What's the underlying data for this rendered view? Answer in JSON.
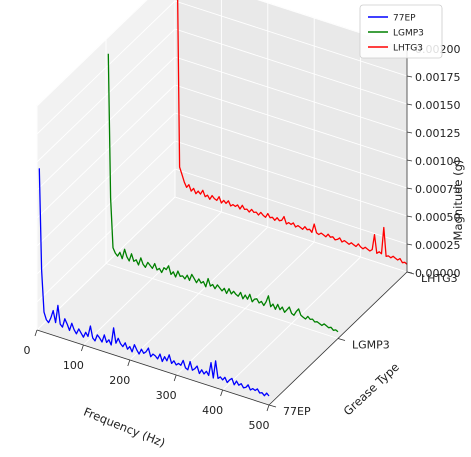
{
  "chart_data": {
    "type": "line",
    "projection": "3d",
    "xlabel": "Frequency (Hz)",
    "ylabel": "Grease Type",
    "zlabel": "Magnitude (g)",
    "xlim": [
      0,
      500
    ],
    "zlim": [
      0,
      0.002
    ],
    "x_ticks": [
      "0",
      "100",
      "200",
      "300",
      "400",
      "500"
    ],
    "y_ticks": [
      "77EP",
      "LGMP3",
      "LHTG3"
    ],
    "z_ticks": [
      "0.00000",
      "0.00025",
      "0.00050",
      "0.00075",
      "0.00100",
      "0.00125",
      "0.00150",
      "0.00175",
      "0.00200"
    ],
    "grid": true,
    "legend_position": "top-right",
    "series": [
      {
        "name": "77EP",
        "color": "#0000ff",
        "x": [
          5,
          10,
          15,
          20,
          25,
          30,
          35,
          40,
          45,
          50,
          55,
          60,
          65,
          70,
          75,
          80,
          85,
          90,
          95,
          100,
          105,
          110,
          115,
          120,
          125,
          130,
          135,
          140,
          145,
          150,
          155,
          160,
          165,
          170,
          175,
          180,
          185,
          190,
          195,
          200,
          205,
          210,
          215,
          220,
          225,
          230,
          235,
          240,
          245,
          250,
          255,
          260,
          265,
          270,
          275,
          280,
          285,
          290,
          295,
          300,
          305,
          310,
          315,
          320,
          325,
          330,
          335,
          340,
          345,
          350,
          355,
          360,
          365,
          370,
          375,
          380,
          385,
          390,
          395,
          400,
          405,
          410,
          415,
          420,
          425,
          430,
          435,
          440,
          445,
          450,
          455,
          460,
          465,
          470,
          475,
          480,
          485,
          490,
          495,
          500
        ],
        "values": [
          0.00145,
          0.00055,
          0.00018,
          0.00012,
          0.0001,
          0.00015,
          0.00022,
          0.00012,
          0.00028,
          0.00012,
          0.0001,
          0.00018,
          0.00014,
          9e-05,
          0.00016,
          0.00011,
          8e-05,
          0.00013,
          0.0001,
          7e-05,
          0.00012,
          9e-05,
          0.00019,
          9e-05,
          7e-05,
          0.00013,
          0.00011,
          8e-05,
          0.00015,
          9e-05,
          0.00012,
          8e-05,
          0.00024,
          0.00011,
          0.00016,
          0.00012,
          0.0001,
          0.00014,
          9e-05,
          0.00012,
          8e-05,
          0.00015,
          0.00011,
          8e-05,
          0.00013,
          0.0001,
          0.00012,
          0.00016,
          9e-05,
          0.00012,
          0.00011,
          9e-05,
          0.00014,
          8e-05,
          0.00013,
          0.0001,
          0.00016,
          9e-05,
          0.00012,
          9e-05,
          0.00011,
          0.0001,
          0.00015,
          9e-05,
          8e-05,
          0.00016,
          9e-05,
          0.00011,
          0.00014,
          8e-05,
          0.00012,
          9e-05,
          0.00012,
          9e-05,
          0.00021,
          8e-05,
          0.00024,
          9e-05,
          0.00011,
          9e-05,
          0.00012,
          8e-05,
          0.00011,
          0.00013,
          8e-05,
          0.00012,
          9e-05,
          0.00011,
          8e-05,
          9e-05,
          0.00012,
          8e-05,
          0.0001,
          9e-05,
          0.00011,
          8e-05,
          9e-05,
          7e-05,
          0.0001,
          8e-05
        ]
      },
      {
        "name": "LGMP3",
        "color": "#008000",
        "x": [
          5,
          10,
          15,
          20,
          25,
          30,
          35,
          40,
          45,
          50,
          55,
          60,
          65,
          70,
          75,
          80,
          85,
          90,
          95,
          100,
          105,
          110,
          115,
          120,
          125,
          130,
          135,
          140,
          145,
          150,
          155,
          160,
          165,
          170,
          175,
          180,
          185,
          190,
          195,
          200,
          205,
          210,
          215,
          220,
          225,
          230,
          235,
          240,
          245,
          250,
          255,
          260,
          265,
          270,
          275,
          280,
          285,
          290,
          295,
          300,
          305,
          310,
          315,
          320,
          325,
          330,
          335,
          340,
          345,
          350,
          355,
          360,
          365,
          370,
          375,
          380,
          385,
          390,
          395,
          400,
          405,
          410,
          415,
          420,
          425,
          430,
          435,
          440,
          445,
          450,
          455,
          460,
          465,
          470,
          475,
          480,
          485,
          490,
          495,
          500
        ],
        "values": [
          0.00188,
          0.0006,
          0.00016,
          0.00012,
          0.0001,
          0.00014,
          9e-05,
          0.00018,
          0.00012,
          9e-05,
          0.00016,
          0.0001,
          0.00012,
          8e-05,
          0.00015,
          0.0001,
          8e-05,
          0.00013,
          0.00011,
          9e-05,
          0.00014,
          9e-05,
          0.00011,
          8e-05,
          0.00013,
          0.00012,
          0.00016,
          9e-05,
          0.00012,
          8e-05,
          0.00014,
          0.0001,
          0.00011,
          9e-05,
          0.00013,
          9e-05,
          0.00015,
          0.00012,
          9e-05,
          0.00013,
          0.0001,
          0.00012,
          8e-05,
          0.00016,
          0.0001,
          0.00012,
          9e-05,
          0.00013,
          0.00011,
          9e-05,
          0.00012,
          8e-05,
          0.00013,
          9e-05,
          0.00012,
          0.0001,
          9e-05,
          0.00013,
          8e-05,
          0.00012,
          9e-05,
          0.00014,
          8e-05,
          0.00011,
          0.00012,
          9e-05,
          0.00011,
          8e-05,
          0.00012,
          0.00018,
          9e-05,
          0.00012,
          8e-05,
          0.00013,
          9e-05,
          0.00012,
          8e-05,
          0.00011,
          0.00014,
          9e-05,
          8e-05,
          0.00012,
          0.00015,
          0.0001,
          9e-05,
          8e-05,
          0.00011,
          9e-05,
          0.0001,
          8e-05,
          9e-05,
          8e-05,
          7e-05,
          9e-05,
          8e-05,
          7e-05,
          8e-05,
          6e-05,
          7e-05,
          6e-05
        ]
      },
      {
        "name": "LHTG3",
        "color": "#ff0000",
        "x": [
          5,
          10,
          15,
          20,
          25,
          30,
          35,
          40,
          45,
          50,
          55,
          60,
          65,
          70,
          75,
          80,
          85,
          90,
          95,
          100,
          105,
          110,
          115,
          120,
          125,
          130,
          135,
          140,
          145,
          150,
          155,
          160,
          165,
          170,
          175,
          180,
          185,
          190,
          195,
          200,
          205,
          210,
          215,
          220,
          225,
          230,
          235,
          240,
          245,
          250,
          255,
          260,
          265,
          270,
          275,
          280,
          285,
          290,
          295,
          300,
          305,
          310,
          315,
          320,
          325,
          330,
          335,
          340,
          345,
          350,
          355,
          360,
          365,
          370,
          375,
          380,
          385,
          390,
          395,
          400,
          405,
          410,
          415,
          420,
          425,
          430,
          435,
          440,
          445,
          450,
          455,
          460,
          465,
          470,
          475,
          480,
          485,
          490,
          495,
          500
        ],
        "values": [
          0.00205,
          0.00028,
          0.00022,
          0.00016,
          0.00012,
          0.00015,
          0.0001,
          0.00013,
          9e-05,
          0.00012,
          0.0001,
          0.00014,
          9e-05,
          0.00011,
          8e-05,
          0.00012,
          0.0001,
          9e-05,
          0.00013,
          8e-05,
          0.00011,
          9e-05,
          0.00012,
          8e-05,
          0.0001,
          9e-05,
          0.00011,
          8e-05,
          0.00012,
          9e-05,
          0.0001,
          8e-05,
          0.00011,
          9e-05,
          0.0001,
          8e-05,
          0.00011,
          9e-05,
          8e-05,
          0.00012,
          9e-05,
          0.0001,
          8e-05,
          0.00011,
          9e-05,
          0.0001,
          0.00014,
          8e-05,
          0.0001,
          9e-05,
          0.00011,
          8e-05,
          0.0001,
          9e-05,
          8e-05,
          0.00011,
          9e-05,
          0.0001,
          8e-05,
          0.00016,
          9e-05,
          8e-05,
          0.0001,
          9e-05,
          8e-05,
          0.00011,
          9e-05,
          0.0001,
          8e-05,
          9e-05,
          0.00011,
          8e-05,
          0.0001,
          9e-05,
          8e-05,
          0.0001,
          9e-05,
          8e-05,
          0.00011,
          9e-05,
          8e-05,
          0.0001,
          9e-05,
          8e-05,
          0.0001,
          0.00024,
          8e-05,
          0.0001,
          9e-05,
          0.00033,
          8e-05,
          9e-05,
          8e-05,
          0.0001,
          9e-05,
          8e-05,
          0.0001,
          7e-05,
          8e-05,
          7e-05
        ]
      }
    ]
  }
}
